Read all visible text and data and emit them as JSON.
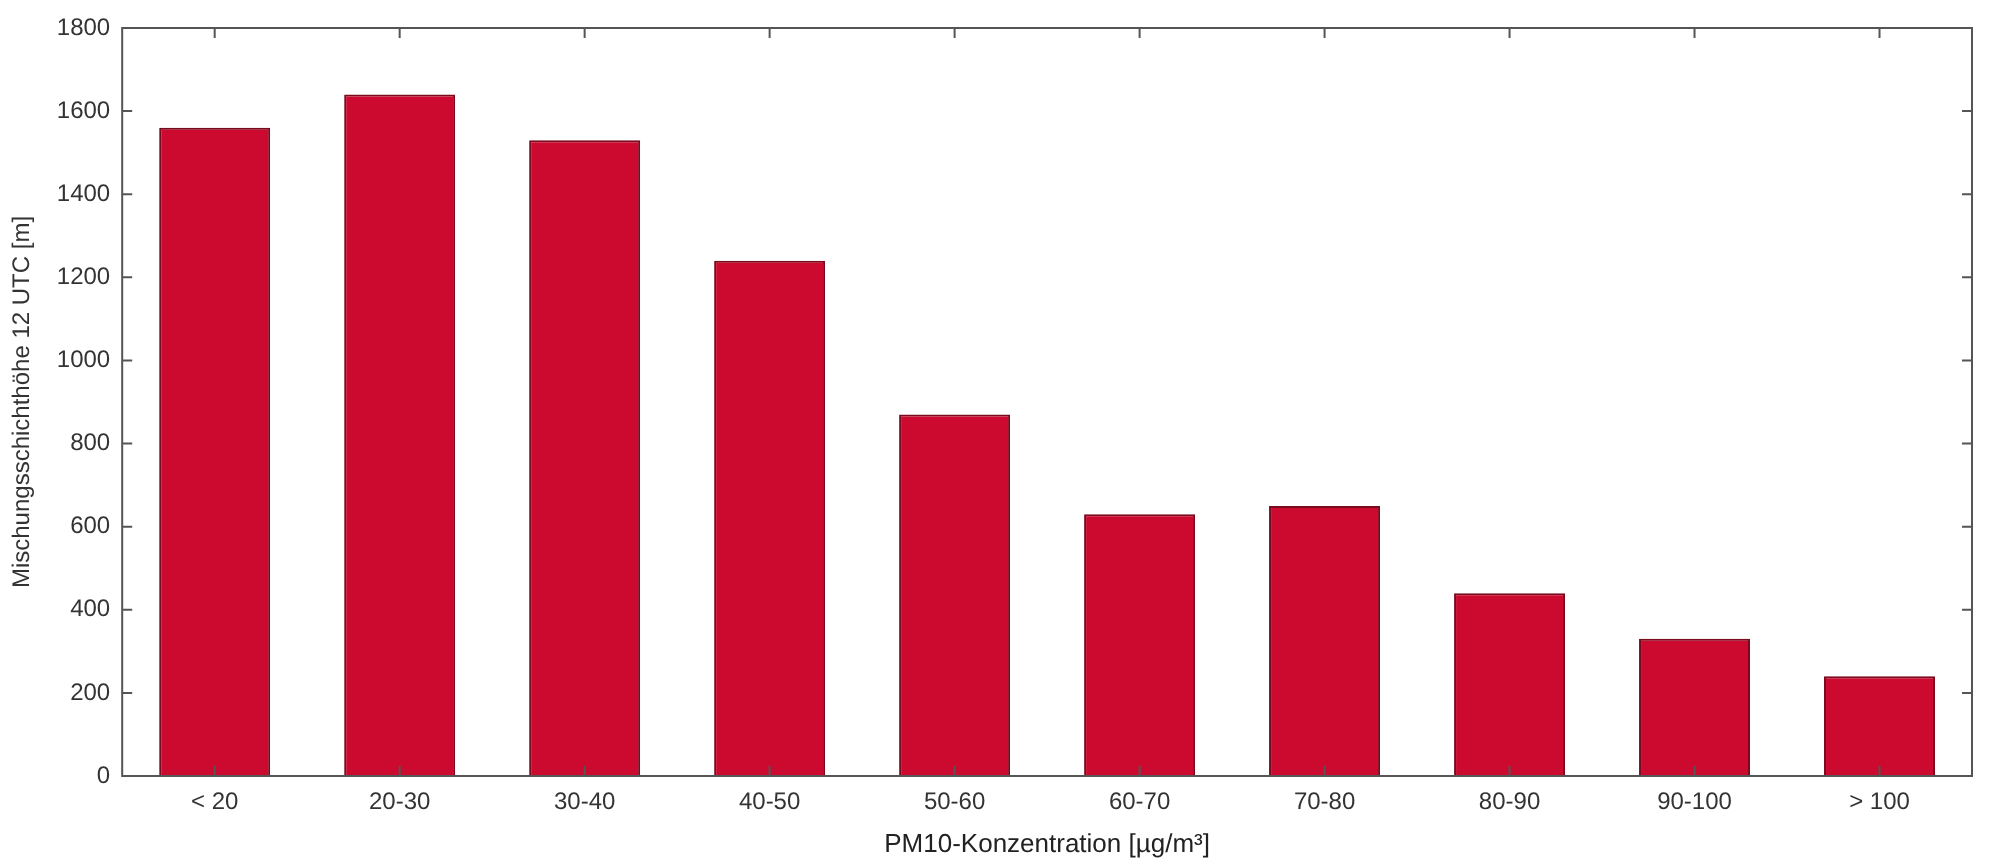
{
  "chart_data": {
    "type": "bar",
    "xlabel": "PM10-Konzentration [µg/m³]",
    "ylabel": "Mischungsschichthöhe 12 UTC [m]",
    "categories": [
      "< 20",
      "20-30",
      "30-40",
      "40-50",
      "50-60",
      "60-70",
      "70-80",
      "80-90",
      "90-100",
      "> 100"
    ],
    "values": [
      1560,
      1640,
      1530,
      1240,
      870,
      630,
      650,
      440,
      330,
      240
    ],
    "color": "#cc0a2f",
    "ylim": [
      0,
      1800
    ],
    "yticks": [
      0,
      200,
      400,
      600,
      800,
      1000,
      1200,
      1400,
      1600,
      1800
    ],
    "grid": false,
    "legend": false
  }
}
